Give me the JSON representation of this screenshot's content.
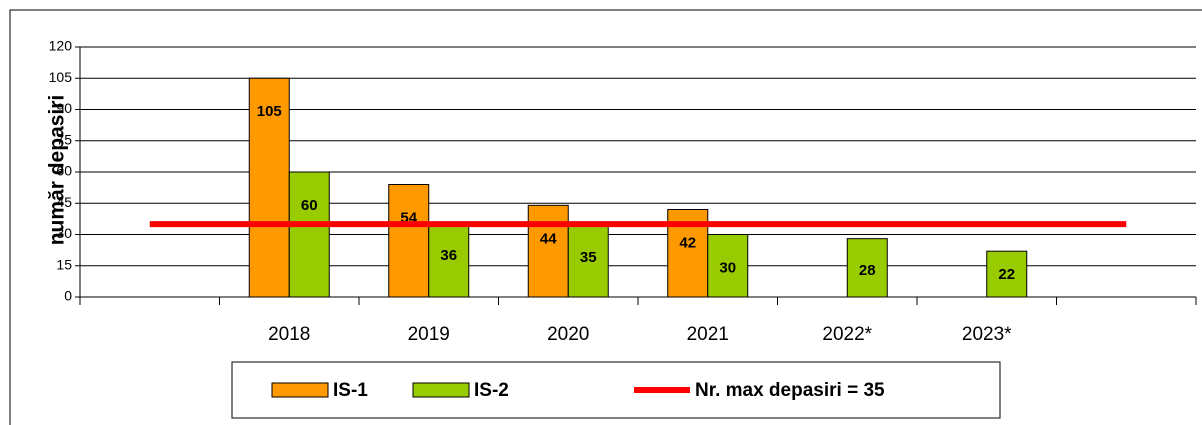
{
  "chart_data": {
    "type": "bar",
    "y_label": "număr depasiri",
    "categories": [
      null,
      "2018",
      "2019",
      "2020",
      "2021",
      "2022*",
      "2023*",
      null
    ],
    "series": [
      {
        "name": "IS-1",
        "color": "#FF9900",
        "values": [
          null,
          105,
          54,
          44,
          42,
          null,
          null,
          null
        ]
      },
      {
        "name": "IS-2",
        "color": "#99CC00",
        "values": [
          null,
          60,
          36,
          35,
          30,
          28,
          22,
          null
        ]
      },
      {
        "name": "Nr. max depasiri = 35",
        "color": "#FF0000",
        "type": "line",
        "values": [
          35,
          35,
          35,
          35,
          35,
          35,
          35,
          35
        ]
      }
    ],
    "ylim": [
      0,
      120
    ],
    "yticks": [
      0,
      15,
      30,
      45,
      60,
      75,
      90,
      105,
      120
    ],
    "grid": true,
    "legend": "bottom"
  }
}
